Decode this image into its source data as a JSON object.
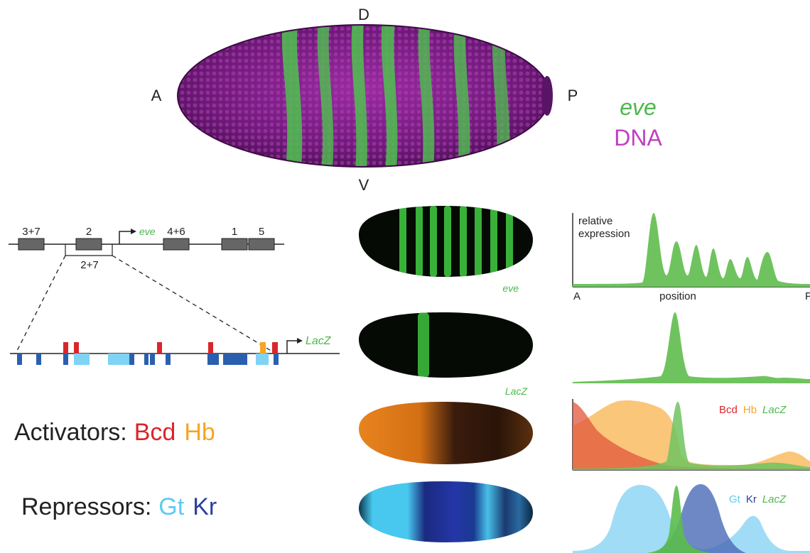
{
  "embryo_top": {
    "axis_labels": {
      "anterior": "A",
      "posterior": "P",
      "dorsal": "D",
      "ventral": "V"
    },
    "legend": {
      "gene": "eve",
      "dna": "DNA"
    }
  },
  "gene_map": {
    "enhancers": [
      "3+7",
      "2",
      "4+6",
      "1",
      "5"
    ],
    "enhancer_bracket": "2+7",
    "gene": "eve"
  },
  "enhancer_detail": {
    "reporter": "LacZ"
  },
  "embryo_panels": [
    {
      "label": "eve"
    },
    {
      "label": "LacZ"
    },
    {
      "label": ""
    },
    {
      "label": ""
    }
  ],
  "expression_plot": {
    "ylabel_line1": "relative",
    "ylabel_line2": "expression",
    "xlabel": "position",
    "x_start": "A",
    "x_end": "P"
  },
  "activators": {
    "title": "Activators:",
    "factors": [
      "Bcd",
      "Hb"
    ],
    "legend": [
      "Bcd",
      "Hb",
      "LacZ"
    ]
  },
  "repressors": {
    "title": "Repressors:",
    "factors": [
      "Gt",
      "Kr"
    ],
    "legend": [
      "Gt",
      "Kr",
      "LacZ"
    ]
  },
  "colors": {
    "eve_green": "#5cb85c",
    "dna_magenta": "#c040c0",
    "bcd_red": "#d9262b",
    "hb_orange": "#f5a623",
    "gt_cyan": "#5ccbf2",
    "kr_blue": "#2a3f9e"
  }
}
